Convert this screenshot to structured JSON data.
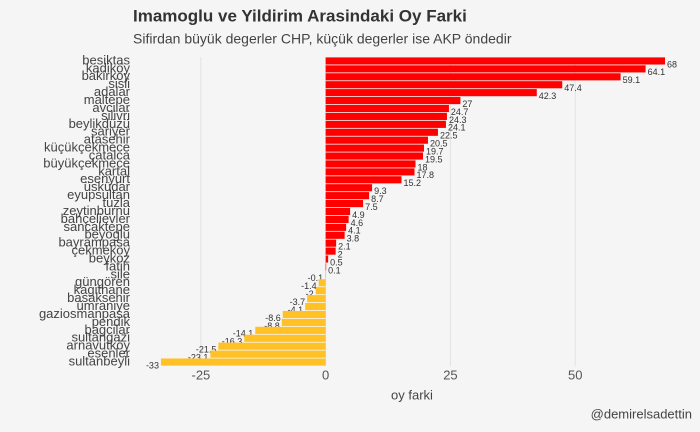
{
  "chart_data": {
    "type": "bar",
    "orientation": "horizontal",
    "title": "Imamoglu ve Yildirim Arasindaki Oy Farki",
    "subtitle": "Sifirdan büyük degerler CHP, küçük degerler ise AKP öndedir",
    "x_label": "oy farki",
    "caption": "@demirelsadettin",
    "categories": [
      "besiktas",
      "kadiköy",
      "bakirköy",
      "sisli",
      "adalar",
      "maltepe",
      "avcilar",
      "silivri",
      "beylikdüzü",
      "sariyer",
      "atasehir",
      "küçükçekmece",
      "çatalca",
      "büyükçekmece",
      "kartal",
      "esenyurt",
      "üsküdar",
      "eyupsultan",
      "tuzla",
      "zeytinburnu",
      "bahçelievler",
      "sancaktepe",
      "beyoglu",
      "bayrampasa",
      "çekmeköy",
      "beykoz",
      "fatih",
      "sile",
      "güngören",
      "kagithane",
      "basaksehir",
      "ümraniye",
      "gaziosmanpasa",
      "pendik",
      "bagcilar",
      "sultangazi",
      "arnavutköy",
      "esenler",
      "sultanbeyli"
    ],
    "values": [
      68,
      64.1,
      59.1,
      47.4,
      42.3,
      27,
      24.7,
      24.3,
      24.1,
      22.5,
      20.5,
      19.7,
      19.5,
      18,
      17.8,
      15.2,
      9.3,
      8.7,
      7.5,
      4.9,
      4.6,
      4.1,
      3.8,
      2.1,
      2,
      0.5,
      0.1,
      -0.1,
      -1.4,
      -2,
      -3.7,
      -4.1,
      -8.6,
      -8.8,
      -14.1,
      -16.3,
      -21.5,
      -23.1,
      -33
    ],
    "color": "#ff0000",
    "negative_color": "#ffc125",
    "xlim": [
      -38,
      73
    ],
    "xticks": [
      -25,
      0,
      25,
      50
    ],
    "grid": true
  }
}
